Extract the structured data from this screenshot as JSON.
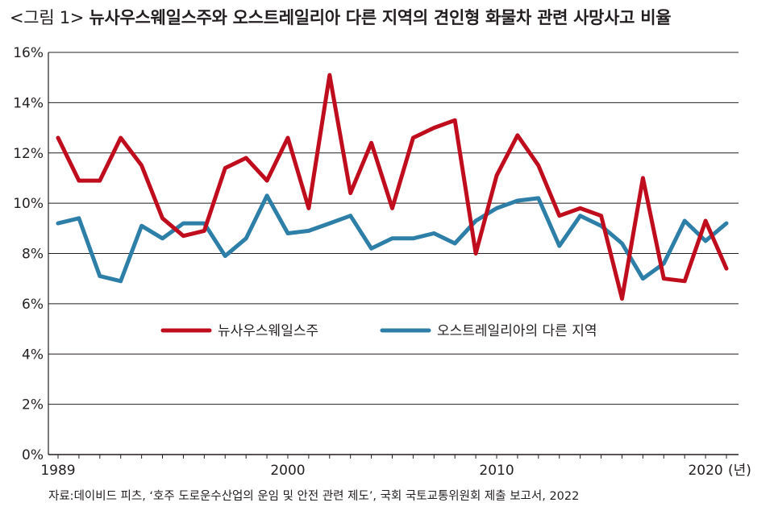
{
  "header": {
    "figure_no": "<그림 1>",
    "title": "뉴사우스웨일스주와 오스트레일리아 다른 지역의 견인형 화물차 관련 사망사고 비율"
  },
  "source": "자료:데이비드 피츠, ‘호주 도로운수산업의 운임 및 안전 관련 제도’, 국회 국토교통위원회 제출 보고서, 2022",
  "colors": {
    "nsw": "#c00d1e",
    "other": "#2d7fa8",
    "grid": "#231f20"
  },
  "chart_data": {
    "type": "line",
    "title": "뉴사우스웨일스주와 오스트레일리아 다른 지역의 견인형 화물차 관련 사망사고 비율",
    "x": [
      1989,
      1990,
      1991,
      1992,
      1993,
      1994,
      1995,
      1996,
      1997,
      1998,
      1999,
      2000,
      2001,
      2002,
      2003,
      2004,
      2005,
      2006,
      2007,
      2008,
      2009,
      2010,
      2011,
      2012,
      2013,
      2014,
      2015,
      2016,
      2017,
      2018,
      2019,
      2020,
      2021
    ],
    "x_tick_labels": [
      "1989",
      "2000",
      "2010",
      "2020"
    ],
    "x_tick_values": [
      1989,
      2000,
      2010,
      2020
    ],
    "x_unit": "(년)",
    "ylim": [
      0,
      16
    ],
    "y_ticks": [
      0,
      2,
      4,
      6,
      8,
      10,
      12,
      14,
      16
    ],
    "y_tick_labels": [
      "0%",
      "2%",
      "4%",
      "6%",
      "8%",
      "10%",
      "12%",
      "14%",
      "16%"
    ],
    "grid": true,
    "legend_position": "center",
    "series": [
      {
        "name": "뉴사우스웨일스주",
        "values": [
          12.6,
          10.9,
          10.9,
          12.6,
          11.5,
          9.4,
          8.7,
          8.9,
          11.4,
          11.8,
          10.9,
          12.6,
          9.8,
          15.1,
          10.4,
          12.4,
          9.8,
          12.6,
          13.0,
          13.3,
          8.0,
          11.1,
          12.7,
          11.5,
          9.5,
          9.8,
          9.5,
          6.2,
          11.0,
          7.0,
          6.9,
          9.3,
          7.4
        ]
      },
      {
        "name": "오스트레일리아의 다른 지역",
        "values": [
          9.2,
          9.4,
          7.1,
          6.9,
          9.1,
          8.6,
          9.2,
          9.2,
          7.9,
          8.6,
          10.3,
          8.8,
          8.9,
          9.2,
          9.5,
          8.2,
          8.6,
          8.6,
          8.8,
          8.4,
          9.3,
          9.8,
          10.1,
          10.2,
          8.3,
          9.5,
          9.1,
          8.4,
          7.0,
          7.6,
          9.3,
          8.5,
          9.2
        ]
      }
    ]
  }
}
